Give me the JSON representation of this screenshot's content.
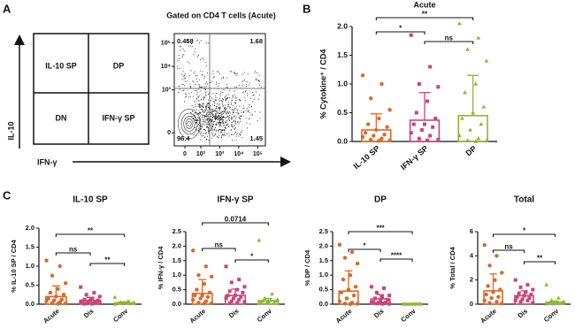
{
  "panel_labels": [
    "A",
    "B",
    "C"
  ],
  "panel_a": {
    "quadrants": [
      "IL-10 SP",
      "DP",
      "DN",
      "IFN-γ SP"
    ],
    "y_arrow_label": "IL-10",
    "x_arrow_label": "IFN-γ"
  },
  "chart_data": [
    {
      "type": "flow",
      "title": "Gated on CD4 T cells (Acute)",
      "xlim": [
        -50,
        250000
      ],
      "ylim": [
        -50,
        250000
      ],
      "xticks": [
        0,
        {
          "value": 100,
          "label": "10²"
        },
        {
          "value": 1000,
          "label": "10³"
        },
        {
          "value": 10000,
          "label": "10⁴"
        },
        {
          "value": 100000,
          "label": "10⁵"
        }
      ],
      "yticks": [
        0,
        {
          "value": 1000,
          "label": "10³"
        },
        {
          "value": 10000,
          "label": "10⁴"
        },
        {
          "value": 100000,
          "label": "10⁵"
        }
      ],
      "quadrant_values": [
        0.458,
        1.68,
        96.4,
        1.45
      ]
    },
    {
      "type": "bar-dot",
      "title": "Acute",
      "ylabel": "% Cytokine⁺ / CD4",
      "categories": [
        "IL-10 SP",
        "IFN-γ SP",
        "DP"
      ],
      "colors": [
        "#d9692b",
        "#c8457a",
        "#8db43a"
      ],
      "markers": [
        "circle",
        "square",
        "triangle"
      ],
      "ylim": [
        0,
        2
      ],
      "yticks": [
        {
          "value": 0,
          "label": "0.0"
        },
        0.5,
        {
          "value": 1,
          "label": "1.0"
        },
        1.5,
        {
          "value": 2,
          "label": "2.0"
        }
      ],
      "values": [
        0.2,
        0.37,
        0.45
      ],
      "errors": [
        0.28,
        0.48,
        0.7
      ],
      "points": [
        [
          1.15,
          1.0,
          0.75,
          0.55,
          0.4,
          0.3,
          0.25,
          0.2,
          0.15,
          0.12,
          0.1,
          0.08,
          0.05,
          0.03,
          0.02,
          0.01
        ],
        [
          1.85,
          1.3,
          1.0,
          0.95,
          0.7,
          0.5,
          0.4,
          0.3,
          0.3,
          0.25,
          0.2,
          0.15,
          0.1,
          0.05,
          0.03,
          0.02
        ],
        [
          2.05,
          1.8,
          1.6,
          1.4,
          1.0,
          0.85,
          0.6,
          0.5,
          0.4,
          0.3,
          0.2,
          0.1,
          0.05,
          0.02,
          0.01,
          0.0
        ]
      ],
      "comparisons": [
        {
          "pair": [
            0,
            2
          ],
          "label": "**"
        },
        {
          "pair": [
            0,
            1
          ],
          "label": "*"
        },
        {
          "pair": [
            1,
            2
          ],
          "label": "ns"
        }
      ]
    },
    {
      "type": "bar-dot",
      "title": "IL-10 SP",
      "ylabel": "% IL-10 SP / CD4",
      "categories": [
        "Acute",
        "Dis",
        "Conv"
      ],
      "colors": [
        "#d9692b",
        "#c8457a",
        "#8db43a"
      ],
      "markers": [
        "circle",
        "square",
        "triangle"
      ],
      "ylim": [
        0,
        2
      ],
      "yticks": [
        {
          "value": 0,
          "label": "0.0"
        },
        0.5,
        {
          "value": 1,
          "label": "1.0"
        },
        1.5,
        {
          "value": 2,
          "label": "2.0"
        }
      ],
      "values": [
        0.2,
        0.1,
        0.03
      ],
      "errors": [
        0.28,
        0.08,
        0.03
      ],
      "points": [
        [
          1.15,
          1.0,
          0.75,
          0.55,
          0.4,
          0.3,
          0.25,
          0.2,
          0.15,
          0.12,
          0.1,
          0.08,
          0.05,
          0.03,
          0.02,
          0.01
        ],
        [
          0.45,
          0.3,
          0.25,
          0.2,
          0.15,
          0.12,
          0.1,
          0.1,
          0.08,
          0.06,
          0.05,
          0.04,
          0.03,
          0.02,
          0.02,
          0.01,
          0.01
        ],
        [
          0.18,
          0.08,
          0.05,
          0.04,
          0.03,
          0.03,
          0.02,
          0.02,
          0.01,
          0.01,
          0.01,
          0.0
        ]
      ],
      "comparisons": [
        {
          "pair": [
            0,
            2
          ],
          "label": "**"
        },
        {
          "pair": [
            0,
            1
          ],
          "label": "ns"
        },
        {
          "pair": [
            1,
            2
          ],
          "label": "**"
        }
      ]
    },
    {
      "type": "bar-dot",
      "title": "IFN-γ SP",
      "ylabel": "% IFN-γ / CD4",
      "categories": [
        "Acute",
        "Dis",
        "Conv"
      ],
      "colors": [
        "#d9692b",
        "#c8457a",
        "#8db43a"
      ],
      "markers": [
        "circle",
        "square",
        "triangle"
      ],
      "ylim": [
        0,
        2.5
      ],
      "yticks": [
        {
          "value": 0,
          "label": "0.0"
        },
        0.5,
        {
          "value": 1,
          "label": "1.0"
        },
        1.5,
        {
          "value": 2,
          "label": "2.0"
        },
        2.5
      ],
      "values": [
        0.37,
        0.3,
        0.12
      ],
      "errors": [
        0.48,
        0.22,
        0.08
      ],
      "points": [
        [
          1.85,
          1.3,
          1.0,
          0.95,
          0.7,
          0.5,
          0.4,
          0.3,
          0.3,
          0.25,
          0.2,
          0.15,
          0.1,
          0.05,
          0.03,
          0.02
        ],
        [
          1.3,
          0.85,
          0.75,
          0.6,
          0.5,
          0.45,
          0.4,
          0.3,
          0.3,
          0.25,
          0.2,
          0.2,
          0.15,
          0.1,
          0.08,
          0.05,
          0.03
        ],
        [
          2.2,
          0.35,
          0.2,
          0.15,
          0.12,
          0.1,
          0.1,
          0.08,
          0.06,
          0.05,
          0.04,
          0.03
        ]
      ],
      "comparisons": [
        {
          "pair": [
            0,
            2
          ],
          "label": "0.0714"
        },
        {
          "pair": [
            0,
            1
          ],
          "label": "ns"
        },
        {
          "pair": [
            1,
            2
          ],
          "label": "*"
        }
      ]
    },
    {
      "type": "bar-dot",
      "title": "DP",
      "ylabel": "% DP / CD4",
      "categories": [
        "Acute",
        "Dis",
        "Conv"
      ],
      "colors": [
        "#d9692b",
        "#c8457a",
        "#8db43a"
      ],
      "markers": [
        "circle",
        "square",
        "triangle"
      ],
      "ylim": [
        0,
        2.5
      ],
      "yticks": [
        {
          "value": 0,
          "label": "0.0"
        },
        0.5,
        {
          "value": 1,
          "label": "1.0"
        },
        1.5,
        {
          "value": 2,
          "label": "2.0"
        },
        2.5
      ],
      "values": [
        0.45,
        0.18,
        0.01
      ],
      "errors": [
        0.7,
        0.15,
        0.01
      ],
      "points": [
        [
          2.05,
          1.8,
          1.6,
          1.4,
          1.0,
          0.85,
          0.6,
          0.5,
          0.4,
          0.3,
          0.2,
          0.1,
          0.05,
          0.02,
          0.01,
          0.0
        ],
        [
          0.6,
          0.55,
          0.4,
          0.3,
          0.25,
          0.2,
          0.15,
          0.1,
          0.08,
          0.06,
          0.05,
          0.04,
          0.03,
          0.02,
          0.01,
          0.01
        ],
        [
          0.01,
          0.01,
          0.0,
          0.0,
          0.0,
          0.0,
          0.01,
          0.0,
          0.0,
          0.0,
          0.0,
          0.0
        ]
      ],
      "comparisons": [
        {
          "pair": [
            0,
            2
          ],
          "label": "***"
        },
        {
          "pair": [
            0,
            1
          ],
          "label": "*"
        },
        {
          "pair": [
            1,
            2
          ],
          "label": "****"
        }
      ]
    },
    {
      "type": "bar-dot",
      "title": "Total",
      "ylabel": "% Total / CD4",
      "categories": [
        "Acute",
        "Dis",
        "Conv"
      ],
      "colors": [
        "#d9692b",
        "#c8457a",
        "#8db43a"
      ],
      "markers": [
        "circle",
        "square",
        "triangle"
      ],
      "ylim": [
        0,
        6
      ],
      "yticks": [
        0,
        2,
        4,
        6
      ],
      "values": [
        1.1,
        0.7,
        0.15
      ],
      "errors": [
        1.4,
        0.4,
        0.1
      ],
      "points": [
        [
          4.9,
          4.0,
          3.2,
          2.6,
          2.0,
          1.5,
          1.2,
          1.0,
          0.8,
          0.6,
          0.5,
          0.3,
          0.2,
          0.1,
          0.05
        ],
        [
          2.0,
          1.6,
          1.4,
          1.2,
          1.0,
          0.9,
          0.8,
          0.7,
          0.6,
          0.5,
          0.4,
          0.3,
          0.3,
          0.2,
          0.1
        ],
        [
          1.6,
          0.5,
          0.3,
          0.2,
          0.15,
          0.12,
          0.1,
          0.08,
          0.05,
          0.04,
          0.03,
          0.02
        ]
      ],
      "comparisons": [
        {
          "pair": [
            0,
            2
          ],
          "label": "*"
        },
        {
          "pair": [
            0,
            1
          ],
          "label": "ns"
        },
        {
          "pair": [
            1,
            2
          ],
          "label": "**"
        }
      ]
    }
  ]
}
